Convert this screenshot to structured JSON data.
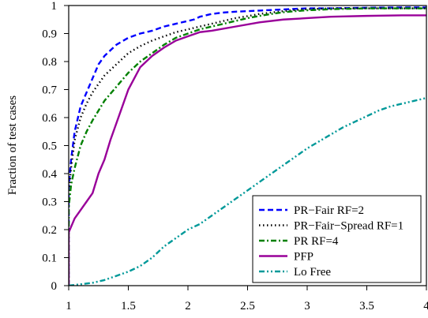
{
  "chart_data": {
    "type": "line",
    "title": "",
    "xlabel": "",
    "ylabel": "Fraction of test cases",
    "xlim": [
      1,
      4
    ],
    "ylim": [
      0,
      1
    ],
    "x_ticks": [
      1,
      1.5,
      2,
      2.5,
      3,
      3.5,
      4
    ],
    "x_tick_labels": [
      "1",
      "1.5",
      "2",
      "2.5",
      "3",
      "3.5",
      "4"
    ],
    "y_ticks": [
      0,
      0.1,
      0.2,
      0.3,
      0.4,
      0.5,
      0.6,
      0.7,
      0.8,
      0.9,
      1
    ],
    "y_tick_labels": [
      "0",
      "0.1",
      "0.2",
      "0.3",
      "0.4",
      "0.5",
      "0.6",
      "0.7",
      "0.8",
      "0.9",
      "1"
    ],
    "grid": false,
    "legend_position": "bottom-right",
    "series": [
      {
        "name": "PR−Fair RF=2",
        "color": "#0000ff",
        "dash": "dashed",
        "x": [
          1.0,
          1.0,
          1.02,
          1.05,
          1.1,
          1.15,
          1.2,
          1.25,
          1.3,
          1.35,
          1.4,
          1.5,
          1.6,
          1.7,
          1.8,
          1.9,
          2.0,
          2.05,
          2.1,
          2.2,
          2.3,
          2.4,
          2.5,
          2.6,
          2.7,
          2.8,
          2.9,
          3.0,
          3.2,
          3.5,
          3.8,
          4.0
        ],
        "y": [
          0.0,
          0.35,
          0.45,
          0.55,
          0.64,
          0.69,
          0.74,
          0.79,
          0.82,
          0.84,
          0.86,
          0.885,
          0.9,
          0.91,
          0.925,
          0.935,
          0.945,
          0.95,
          0.96,
          0.97,
          0.975,
          0.978,
          0.98,
          0.982,
          0.984,
          0.986,
          0.988,
          0.99,
          0.99,
          0.992,
          0.993,
          0.993
        ]
      },
      {
        "name": "PR−Fair−Spread RF=1",
        "color": "#000000",
        "dash": "dotted",
        "x": [
          1.0,
          1.0,
          1.02,
          1.05,
          1.1,
          1.15,
          1.2,
          1.3,
          1.4,
          1.5,
          1.6,
          1.7,
          1.8,
          1.9,
          2.0,
          2.1,
          2.2,
          2.3,
          2.4,
          2.5,
          2.6,
          2.7,
          2.8,
          2.9,
          3.0,
          3.2,
          3.5,
          3.8,
          4.0
        ],
        "y": [
          0.0,
          0.33,
          0.42,
          0.52,
          0.6,
          0.65,
          0.69,
          0.75,
          0.79,
          0.83,
          0.855,
          0.875,
          0.89,
          0.905,
          0.915,
          0.925,
          0.935,
          0.945,
          0.955,
          0.962,
          0.97,
          0.975,
          0.98,
          0.984,
          0.987,
          0.99,
          0.99,
          0.99,
          0.99
        ]
      },
      {
        "name": "PR RF=4",
        "color": "#008000",
        "dash": "dashdot",
        "x": [
          1.0,
          1.0,
          1.02,
          1.05,
          1.1,
          1.15,
          1.2,
          1.3,
          1.4,
          1.5,
          1.6,
          1.7,
          1.8,
          1.9,
          2.0,
          2.1,
          2.2,
          2.3,
          2.4,
          2.5,
          2.6,
          2.7,
          2.8,
          2.9,
          3.0,
          3.2,
          3.5,
          3.8,
          4.0
        ],
        "y": [
          0.0,
          0.28,
          0.36,
          0.42,
          0.5,
          0.55,
          0.59,
          0.66,
          0.71,
          0.76,
          0.8,
          0.83,
          0.86,
          0.885,
          0.9,
          0.915,
          0.925,
          0.935,
          0.945,
          0.955,
          0.963,
          0.97,
          0.976,
          0.98,
          0.983,
          0.987,
          0.99,
          0.99,
          0.99
        ]
      },
      {
        "name": "PFP",
        "color": "#990099",
        "dash": "solid",
        "x": [
          1.0,
          1.0,
          1.02,
          1.05,
          1.1,
          1.15,
          1.2,
          1.25,
          1.3,
          1.35,
          1.4,
          1.45,
          1.5,
          1.55,
          1.6,
          1.7,
          1.8,
          1.9,
          2.0,
          2.1,
          2.2,
          2.4,
          2.6,
          2.8,
          3.0,
          3.2,
          3.5,
          3.8,
          4.0
        ],
        "y": [
          0.0,
          0.19,
          0.21,
          0.24,
          0.27,
          0.3,
          0.33,
          0.4,
          0.45,
          0.52,
          0.58,
          0.64,
          0.7,
          0.74,
          0.78,
          0.82,
          0.85,
          0.875,
          0.89,
          0.905,
          0.91,
          0.925,
          0.94,
          0.95,
          0.955,
          0.96,
          0.963,
          0.965,
          0.965
        ]
      },
      {
        "name": "Lo Free",
        "color": "#009999",
        "dash": "dashdotdot",
        "x": [
          1.0,
          1.1,
          1.2,
          1.3,
          1.4,
          1.5,
          1.6,
          1.7,
          1.8,
          1.9,
          2.0,
          2.1,
          2.2,
          2.3,
          2.4,
          2.5,
          2.6,
          2.7,
          2.8,
          2.9,
          3.0,
          3.1,
          3.2,
          3.3,
          3.4,
          3.5,
          3.6,
          3.7,
          3.8,
          3.9,
          4.0
        ],
        "y": [
          0.0,
          0.005,
          0.01,
          0.02,
          0.035,
          0.05,
          0.07,
          0.1,
          0.14,
          0.17,
          0.2,
          0.22,
          0.25,
          0.28,
          0.31,
          0.34,
          0.37,
          0.4,
          0.43,
          0.46,
          0.49,
          0.515,
          0.54,
          0.565,
          0.585,
          0.605,
          0.625,
          0.64,
          0.65,
          0.66,
          0.67
        ]
      }
    ]
  }
}
